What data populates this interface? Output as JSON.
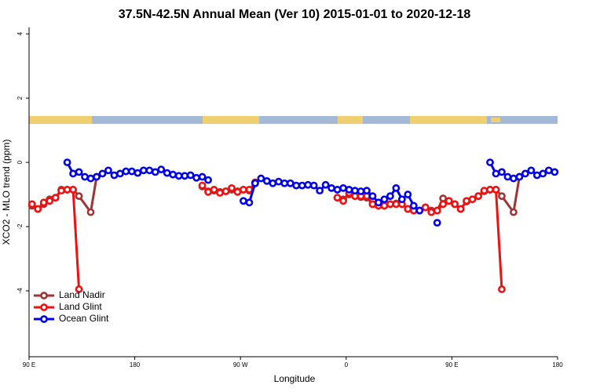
{
  "chart_data": {
    "type": "line",
    "title": "37.5N-42.5N Annual Mean (Ver 10)   2015-01-01 to 2020-12-18",
    "x_label": "Longitude",
    "y_label": "XCO2 - MLO trend (ppm)",
    "xlim": [
      90,
      540
    ],
    "ylim": [
      -6.05,
      4.2
    ],
    "xticks": [
      {
        "value": 90,
        "label": "90 E"
      },
      180,
      {
        "value": 270,
        "label": "90 W"
      },
      {
        "value": 360,
        "label": "0"
      },
      {
        "value": 450,
        "label": "90 E"
      },
      {
        "value": 540,
        "label": "180"
      }
    ],
    "yticks": [
      4,
      2,
      0,
      -2,
      -4
    ],
    "legend": "bottomleft",
    "series": [
      {
        "name": "Land Nadir",
        "color": "#9e3434",
        "x": [
          92.5,
          97.5,
          102.5,
          107.5,
          112.5,
          117.5,
          122.5,
          127.5,
          132.5,
          142.5,
          147.5,
          152.5,
          237.5,
          242.5,
          247.5,
          252.5,
          257.5,
          262.5,
          267.5,
          272.5,
          277.5,
          282.5,
          287.5,
          352.5,
          357.5,
          362.5,
          367.5,
          372.5,
          377.5,
          382.5,
          387.5,
          392.5,
          397.5,
          402.5,
          407.5,
          412.5,
          417.5,
          422.5,
          427.5,
          432.5,
          437.5,
          442.5,
          447.5,
          452.5,
          457.5,
          462.5,
          467.5,
          472.5,
          477.5,
          482.5,
          487.5,
          492.5,
          502.5,
          507.5
        ],
        "values": [
          -1.35,
          -1.45,
          -1.3,
          -1.15,
          -1.1,
          -0.85,
          -0.85,
          -0.85,
          -1.05,
          -1.55,
          -0.45,
          null,
          -0.75,
          -0.9,
          -0.88,
          -0.92,
          -0.9,
          -0.85,
          -0.9,
          -0.85,
          -0.88,
          -0.62,
          null,
          -1.1,
          -1.15,
          -1.0,
          -1.05,
          -1.08,
          -1.1,
          -1.3,
          -1.35,
          -1.35,
          -1.3,
          -1.28,
          -1.3,
          -1.45,
          -1.5,
          -1.5,
          -1.4,
          -1.5,
          -1.5,
          -1.12,
          -1.2,
          -1.3,
          -1.45,
          -1.22,
          -1.15,
          -1.05,
          -0.9,
          -0.85,
          -0.85,
          -1.05,
          -1.55,
          -0.45
        ]
      },
      {
        "name": "Land Glint",
        "color": "#ee1111",
        "x": [
          92.5,
          97.5,
          102.5,
          107.5,
          112.5,
          117.5,
          122.5,
          127.5,
          132.5,
          137.5,
          237.5,
          242.5,
          247.5,
          252.5,
          257.5,
          262.5,
          267.5,
          272.5,
          277.5,
          282.5,
          287.5,
          352.5,
          357.5,
          362.5,
          367.5,
          372.5,
          377.5,
          382.5,
          387.5,
          392.5,
          397.5,
          402.5,
          407.5,
          412.5,
          417.5,
          422.5,
          427.5,
          432.5,
          437.5,
          442.5,
          447.5,
          452.5,
          457.5,
          462.5,
          467.5,
          472.5,
          477.5,
          482.5,
          487.5,
          492.5
        ],
        "values": [
          -1.3,
          -1.45,
          -1.25,
          -1.2,
          -1.1,
          -0.88,
          -0.85,
          -0.85,
          -3.95,
          null,
          -0.72,
          -0.92,
          -0.85,
          -0.95,
          -0.9,
          -0.8,
          -0.92,
          -0.85,
          -0.85,
          -0.65,
          null,
          -1.1,
          -1.2,
          -0.95,
          -1.05,
          -1.05,
          -1.05,
          -1.3,
          -1.35,
          -1.35,
          -1.3,
          -1.3,
          -1.3,
          -1.45,
          -1.5,
          -1.5,
          -1.4,
          -1.55,
          -1.5,
          -1.3,
          -1.2,
          -1.3,
          -1.45,
          -1.2,
          -1.15,
          -1.05,
          -0.88,
          -0.85,
          -0.85,
          -3.95
        ]
      },
      {
        "name": "Ocean Glint",
        "color": "#0000ee",
        "x": [
          122.5,
          127.5,
          132.5,
          137.5,
          142.5,
          147.5,
          152.5,
          157.5,
          162.5,
          167.5,
          172.5,
          177.5,
          182.5,
          187.5,
          192.5,
          197.5,
          202.5,
          207.5,
          212.5,
          217.5,
          222.5,
          227.5,
          232.5,
          237.5,
          242.5,
          257.5,
          272.5,
          277.5,
          282.5,
          287.5,
          292.5,
          297.5,
          302.5,
          307.5,
          312.5,
          317.5,
          322.5,
          327.5,
          332.5,
          337.5,
          342.5,
          347.5,
          352.5,
          357.5,
          362.5,
          367.5,
          372.5,
          377.5,
          382.5,
          387.5,
          392.5,
          397.5,
          402.5,
          407.5,
          412.5,
          417.5,
          422.5,
          427.5,
          437.5,
          442.5,
          482.5,
          487.5,
          492.5,
          497.5,
          502.5,
          507.5,
          512.5,
          517.5,
          522.5,
          527.5,
          532.5,
          537.5
        ],
        "values": [
          0.0,
          -0.35,
          -0.3,
          -0.45,
          -0.5,
          -0.45,
          -0.35,
          -0.25,
          -0.4,
          -0.35,
          -0.28,
          -0.28,
          -0.33,
          -0.25,
          -0.25,
          -0.3,
          -0.22,
          -0.33,
          -0.38,
          -0.42,
          -0.42,
          -0.4,
          -0.48,
          -0.45,
          -0.55,
          null,
          -1.2,
          -1.25,
          -0.65,
          -0.5,
          -0.58,
          -0.65,
          -0.6,
          -0.65,
          -0.65,
          -0.72,
          -0.72,
          -0.7,
          -0.72,
          -0.88,
          -0.7,
          -0.8,
          -0.85,
          -0.8,
          -0.85,
          -0.88,
          -0.9,
          -0.88,
          -1.05,
          -1.25,
          -1.15,
          -1.05,
          -0.8,
          -1.15,
          -1.0,
          -1.35,
          -1.5,
          null,
          -1.88,
          null,
          0.0,
          -0.35,
          -0.3,
          -0.45,
          -0.5,
          -0.45,
          -0.35,
          -0.25,
          -0.4,
          -0.35,
          -0.25,
          -0.3
        ]
      }
    ]
  }
}
